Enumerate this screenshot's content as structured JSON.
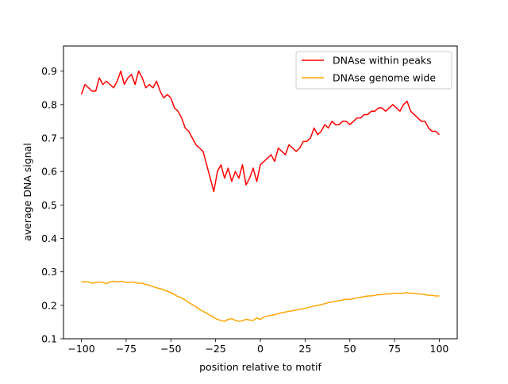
{
  "chart_data": {
    "type": "line",
    "title": "",
    "xlabel": "position relative to motif",
    "ylabel": "average DNA signal",
    "xlim": [
      -110,
      110
    ],
    "ylim": [
      0.1,
      0.975
    ],
    "x_ticks": [
      -100,
      -75,
      -50,
      -25,
      0,
      25,
      50,
      75,
      100
    ],
    "x_tick_labels": [
      "−100",
      "−75",
      "−50",
      "−25",
      "0",
      "25",
      "50",
      "75",
      "100"
    ],
    "y_ticks": [
      0.1,
      0.2,
      0.3,
      0.4,
      0.5,
      0.6,
      0.7,
      0.8,
      0.9
    ],
    "y_tick_labels": [
      "0.1",
      "0.2",
      "0.3",
      "0.4",
      "0.5",
      "0.6",
      "0.7",
      "0.8",
      "0.9"
    ],
    "grid": false,
    "legend_position": "top-right",
    "series": [
      {
        "name": "DNAse within peaks",
        "color": "#ff0000",
        "x": [
          -100,
          -98,
          -96,
          -94,
          -92,
          -90,
          -88,
          -86,
          -84,
          -82,
          -80,
          -78,
          -76,
          -74,
          -72,
          -70,
          -68,
          -66,
          -64,
          -62,
          -60,
          -58,
          -56,
          -54,
          -52,
          -50,
          -48,
          -46,
          -44,
          -42,
          -40,
          -38,
          -36,
          -34,
          -32,
          -30,
          -28,
          -26,
          -24,
          -22,
          -20,
          -18,
          -16,
          -14,
          -12,
          -10,
          -8,
          -6,
          -4,
          -2,
          0,
          2,
          4,
          6,
          8,
          10,
          12,
          14,
          16,
          18,
          20,
          22,
          24,
          26,
          28,
          30,
          32,
          34,
          36,
          38,
          40,
          42,
          44,
          46,
          48,
          50,
          52,
          54,
          56,
          58,
          60,
          62,
          64,
          66,
          68,
          70,
          72,
          74,
          76,
          78,
          80,
          82,
          84,
          86,
          88,
          90,
          92,
          94,
          96,
          98,
          100
        ],
        "values": [
          0.83,
          0.86,
          0.85,
          0.84,
          0.84,
          0.88,
          0.86,
          0.87,
          0.86,
          0.85,
          0.87,
          0.9,
          0.86,
          0.88,
          0.89,
          0.86,
          0.9,
          0.88,
          0.85,
          0.86,
          0.85,
          0.87,
          0.84,
          0.82,
          0.83,
          0.82,
          0.79,
          0.78,
          0.76,
          0.73,
          0.72,
          0.7,
          0.68,
          0.67,
          0.66,
          0.62,
          0.58,
          0.54,
          0.6,
          0.62,
          0.58,
          0.61,
          0.57,
          0.6,
          0.58,
          0.62,
          0.56,
          0.58,
          0.61,
          0.57,
          0.62,
          0.63,
          0.64,
          0.65,
          0.63,
          0.67,
          0.66,
          0.65,
          0.68,
          0.67,
          0.66,
          0.67,
          0.69,
          0.69,
          0.7,
          0.73,
          0.71,
          0.72,
          0.74,
          0.73,
          0.75,
          0.74,
          0.74,
          0.75,
          0.75,
          0.74,
          0.75,
          0.76,
          0.76,
          0.77,
          0.77,
          0.78,
          0.78,
          0.79,
          0.79,
          0.78,
          0.79,
          0.8,
          0.79,
          0.78,
          0.8,
          0.81,
          0.78,
          0.77,
          0.76,
          0.75,
          0.75,
          0.73,
          0.72,
          0.72,
          0.71
        ]
      },
      {
        "name": "DNAse genome wide",
        "color": "#ffa500",
        "x": [
          -100,
          -98,
          -96,
          -94,
          -92,
          -90,
          -88,
          -86,
          -84,
          -82,
          -80,
          -78,
          -76,
          -74,
          -72,
          -70,
          -68,
          -66,
          -64,
          -62,
          -60,
          -58,
          -56,
          -54,
          -52,
          -50,
          -48,
          -46,
          -44,
          -42,
          -40,
          -38,
          -36,
          -34,
          -32,
          -30,
          -28,
          -26,
          -24,
          -22,
          -20,
          -18,
          -16,
          -14,
          -12,
          -10,
          -8,
          -6,
          -4,
          -2,
          0,
          2,
          4,
          6,
          8,
          10,
          12,
          14,
          16,
          18,
          20,
          22,
          24,
          26,
          28,
          30,
          32,
          34,
          36,
          38,
          40,
          42,
          44,
          46,
          48,
          50,
          52,
          54,
          56,
          58,
          60,
          62,
          64,
          66,
          68,
          70,
          72,
          74,
          76,
          78,
          80,
          82,
          84,
          86,
          88,
          90,
          92,
          94,
          96,
          98,
          100
        ],
        "values": [
          0.27,
          0.27,
          0.27,
          0.266,
          0.268,
          0.27,
          0.268,
          0.265,
          0.27,
          0.272,
          0.27,
          0.272,
          0.27,
          0.268,
          0.27,
          0.268,
          0.266,
          0.266,
          0.262,
          0.26,
          0.256,
          0.252,
          0.25,
          0.246,
          0.242,
          0.238,
          0.232,
          0.226,
          0.222,
          0.216,
          0.208,
          0.202,
          0.196,
          0.188,
          0.182,
          0.176,
          0.17,
          0.164,
          0.158,
          0.155,
          0.152,
          0.158,
          0.16,
          0.155,
          0.152,
          0.154,
          0.158,
          0.156,
          0.155,
          0.162,
          0.158,
          0.165,
          0.168,
          0.17,
          0.172,
          0.175,
          0.178,
          0.18,
          0.182,
          0.184,
          0.186,
          0.188,
          0.19,
          0.192,
          0.195,
          0.198,
          0.2,
          0.202,
          0.205,
          0.208,
          0.21,
          0.212,
          0.214,
          0.216,
          0.218,
          0.218,
          0.22,
          0.222,
          0.224,
          0.226,
          0.228,
          0.228,
          0.23,
          0.232,
          0.232,
          0.234,
          0.234,
          0.236,
          0.236,
          0.236,
          0.236,
          0.238,
          0.236,
          0.236,
          0.234,
          0.234,
          0.232,
          0.23,
          0.23,
          0.228,
          0.228
        ]
      }
    ]
  }
}
